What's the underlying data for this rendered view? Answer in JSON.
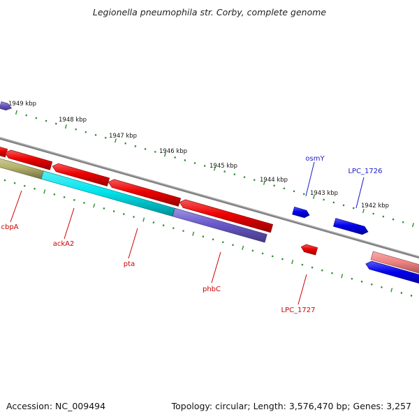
{
  "title": "Legionella pneumophila str. Corby, complete genome",
  "footer": {
    "accession": "Accession: NC_009494",
    "summary": "Topology: circular; Length: 3,576,470 bp; Genes: 3,257"
  },
  "colors": {
    "backbone": "#808080",
    "ticks": "#2e8b2e",
    "label_forward": "#1a1acc",
    "label_reverse": "#cc0000"
  },
  "kbp_labels": [
    "1949 kbp",
    "1948 kbp",
    "1947 kbp",
    "1946 kbp",
    "1945 kbp",
    "1944 kbp",
    "1943 kbp",
    "1942 kbp"
  ],
  "genes": [
    {
      "id": "g_osmY",
      "label": "osmY",
      "strand": "forward",
      "color": "#0000ee"
    },
    {
      "id": "g_LPC_1726",
      "label": "LPC_1726",
      "strand": "forward",
      "color": "#0000ee"
    },
    {
      "id": "g_fwd_a",
      "label": "",
      "strand": "forward",
      "color": "#0000ee"
    },
    {
      "id": "g_fwd_edge",
      "label": "",
      "strand": "forward",
      "color": "#6a5acd"
    },
    {
      "id": "g_rev_edge",
      "label": "",
      "strand": "reverse",
      "color": "#ee0000"
    },
    {
      "id": "g_rev_a",
      "label": "",
      "strand": "reverse",
      "color": "#ee0000"
    },
    {
      "id": "g_rev_b",
      "label": "",
      "strand": "reverse",
      "color": "#ee0000"
    },
    {
      "id": "g_rev_c",
      "label": "",
      "strand": "reverse",
      "color": "#ee0000"
    },
    {
      "id": "g_rev_d",
      "label": "",
      "strand": "reverse",
      "color": "#ee0000"
    },
    {
      "id": "g_cbpA",
      "label": "cbpA",
      "strand": "reverse",
      "color": "#b5b26a"
    },
    {
      "id": "g_ackA2",
      "label": "ackA2",
      "strand": "reverse",
      "color": "#00e5ee"
    },
    {
      "id": "g_phbC",
      "label": "phbC",
      "strand": "reverse",
      "color": "#6a5acd"
    },
    {
      "id": "g_pink",
      "label": "",
      "strand": "reverse",
      "color": "#f08080"
    },
    {
      "id": "g_rev_blue",
      "label": "",
      "strand": "reverse",
      "color": "#0000ee"
    },
    {
      "id": "g_LPC_1727",
      "label": "LPC_1727",
      "strand": "reverse",
      "color": "#ee0000"
    },
    {
      "id": "g_pta",
      "label": "pta",
      "strand": "reverse",
      "color": "#ee0000"
    }
  ]
}
